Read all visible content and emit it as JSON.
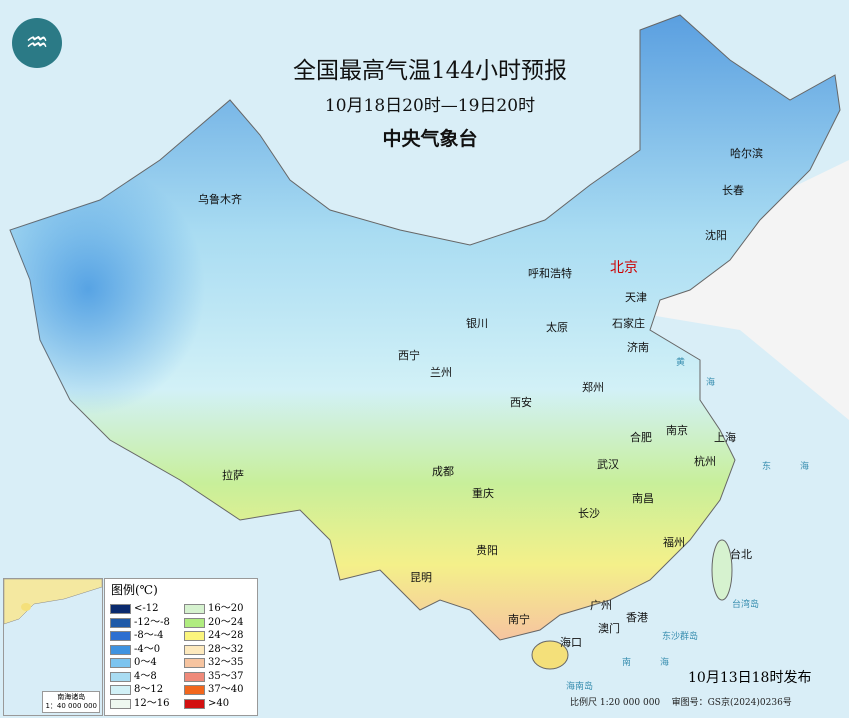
{
  "header": {
    "title": "全国最高气温144小时预报",
    "period": "10月18日20时—19日20时",
    "issuer": "中央气象台"
  },
  "logo": {
    "icon": "cma-logo"
  },
  "cities": [
    {
      "name": "乌鲁木齐",
      "capital": false
    },
    {
      "name": "哈尔滨"
    },
    {
      "name": "长春"
    },
    {
      "name": "沈阳"
    },
    {
      "name": "北京",
      "capital": true
    },
    {
      "name": "天津"
    },
    {
      "name": "呼和浩特"
    },
    {
      "name": "石家庄"
    },
    {
      "name": "太原"
    },
    {
      "name": "银川"
    },
    {
      "name": "济南"
    },
    {
      "name": "西宁"
    },
    {
      "name": "兰州"
    },
    {
      "name": "郑州"
    },
    {
      "name": "西安"
    },
    {
      "name": "南京"
    },
    {
      "name": "合肥"
    },
    {
      "name": "上海"
    },
    {
      "name": "杭州"
    },
    {
      "name": "武汉"
    },
    {
      "name": "成都"
    },
    {
      "name": "拉萨"
    },
    {
      "name": "重庆"
    },
    {
      "name": "南昌"
    },
    {
      "name": "长沙"
    },
    {
      "name": "福州"
    },
    {
      "name": "台北"
    },
    {
      "name": "贵阳"
    },
    {
      "name": "昆明"
    },
    {
      "name": "广州"
    },
    {
      "name": "香港"
    },
    {
      "name": "澳门"
    },
    {
      "name": "南宁"
    },
    {
      "name": "海口"
    }
  ],
  "seas": [
    "黄",
    "海",
    "东",
    "海",
    "台湾岛",
    "东沙群岛",
    "南",
    "海",
    "海南岛"
  ],
  "legend": {
    "title": "图例(℃)",
    "items": [
      {
        "label": "<-12",
        "color": "#0a2a6e"
      },
      {
        "label": "-12～-8",
        "color": "#1f5aa8"
      },
      {
        "label": "-8～-4",
        "color": "#2e6fd0"
      },
      {
        "label": "-4～0",
        "color": "#3f93e0"
      },
      {
        "label": "0～4",
        "color": "#7cc4ef"
      },
      {
        "label": "4～8",
        "color": "#a9dcf2"
      },
      {
        "label": "8～12",
        "color": "#d2f1f7"
      },
      {
        "label": "12～16",
        "color": "#eef8f0"
      },
      {
        "label": "16～20",
        "color": "#d6f2cf"
      },
      {
        "label": "20～24",
        "color": "#b0ec80"
      },
      {
        "label": "24～28",
        "color": "#fbf57d"
      },
      {
        "label": "28～32",
        "color": "#fde9bd"
      },
      {
        "label": "32～35",
        "color": "#f6c4a0"
      },
      {
        "label": "35～37",
        "color": "#ef8a7a"
      },
      {
        "label": "37～40",
        "color": "#f2661c"
      },
      {
        "label": ">40",
        "color": "#d21010"
      }
    ]
  },
  "inset": {
    "label": "南海诸岛",
    "scale": "1：40 000 000"
  },
  "issued": "10月13日18时发布",
  "footer": {
    "scale": "比例尺 1:20 000 000",
    "approval": "审图号：GS京(2024)0236号"
  }
}
